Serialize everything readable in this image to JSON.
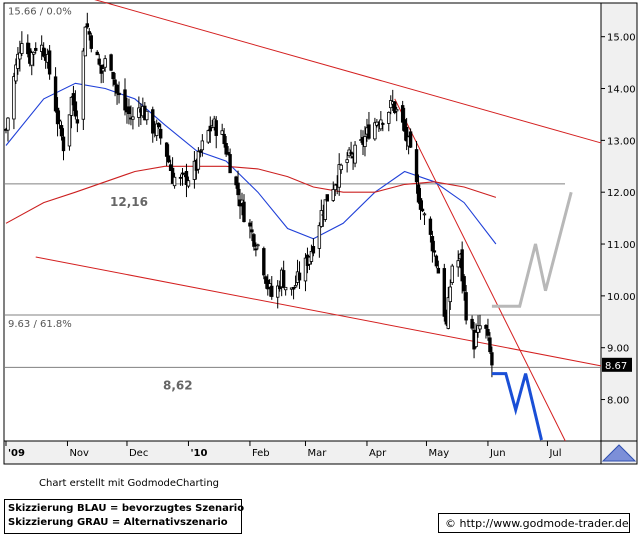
{
  "chart_data": {
    "type": "candlestick",
    "title": "",
    "x_axis": {
      "tick_labels": [
        "'09",
        "Nov",
        "Dec",
        "'10",
        "Feb",
        "Mar",
        "Apr",
        "May",
        "Jun",
        "Jul"
      ],
      "tick_dates": [
        "2009-10-01",
        "2009-11-01",
        "2009-12-01",
        "2010-01-01",
        "2010-02-01",
        "2010-03-01",
        "2010-04-01",
        "2010-05-01",
        "2010-06-01",
        "2010-07-01"
      ],
      "range": [
        "2009-09-30",
        "2010-07-28"
      ]
    },
    "y_axis": {
      "tick_labels": [
        "8.00",
        "9.00",
        "10.00",
        "11.00",
        "12.00",
        "13.00",
        "14.00",
        "15.00"
      ],
      "range": [
        7.2,
        15.65
      ],
      "side": "right"
    },
    "last_price_label": "8.67",
    "last_price": 8.67,
    "horizontal_lines": [
      {
        "label": "15.66 / 0.0%",
        "value": 15.66
      },
      {
        "label": "",
        "value": 12.16
      },
      {
        "label": "9.63 / 61.8%",
        "value": 9.63
      },
      {
        "label": "",
        "value": 8.62
      }
    ],
    "level_labels": [
      {
        "text": "12,16",
        "value": 12.16
      },
      {
        "text": "8,62",
        "value": 8.62
      }
    ],
    "trendlines": [
      {
        "name": "upper channel",
        "start": [
          "2009-10-01",
          16.2
        ],
        "end": [
          "2010-07-28",
          12.95
        ]
      },
      {
        "name": "lower channel",
        "start": [
          "2009-10-16",
          10.75
        ],
        "end": [
          "2010-07-28",
          8.65
        ]
      },
      {
        "name": "steep down trendline",
        "start": [
          "2010-04-15",
          13.8
        ],
        "end": [
          "2010-07-10",
          7.2
        ]
      }
    ],
    "close_series": [
      [
        "2009-10-01",
        13.2
      ],
      [
        "2009-10-05",
        14.2
      ],
      [
        "2009-10-09",
        15.0
      ],
      [
        "2009-10-13",
        14.6
      ],
      [
        "2009-10-17",
        14.9
      ],
      [
        "2009-10-21",
        14.7
      ],
      [
        "2009-10-25",
        13.9
      ],
      [
        "2009-10-27",
        13.4
      ],
      [
        "2009-10-30",
        12.9
      ],
      [
        "2009-11-03",
        13.8
      ],
      [
        "2009-11-07",
        13.4
      ],
      [
        "2009-11-10",
        15.3
      ],
      [
        "2009-11-14",
        14.8
      ],
      [
        "2009-11-18",
        14.3
      ],
      [
        "2009-11-22",
        14.7
      ],
      [
        "2009-11-26",
        13.9
      ],
      [
        "2009-11-30",
        13.6
      ],
      [
        "2009-12-04",
        13.4
      ],
      [
        "2009-12-08",
        13.7
      ],
      [
        "2009-12-12",
        13.3
      ],
      [
        "2009-12-16",
        13.2
      ],
      [
        "2009-12-20",
        12.9
      ],
      [
        "2009-12-24",
        12.3
      ],
      [
        "2009-12-28",
        12.2
      ],
      [
        "2010-01-01",
        12.3
      ],
      [
        "2010-01-05",
        12.5
      ],
      [
        "2010-01-09",
        13.0
      ],
      [
        "2010-01-13",
        13.3
      ],
      [
        "2010-01-17",
        13.2
      ],
      [
        "2010-01-21",
        12.7
      ],
      [
        "2010-01-25",
        12.1
      ],
      [
        "2010-01-29",
        11.6
      ],
      [
        "2010-02-02",
        11.2
      ],
      [
        "2010-02-06",
        10.9
      ],
      [
        "2010-02-10",
        10.2
      ],
      [
        "2010-02-13",
        9.9
      ],
      [
        "2010-02-17",
        10.4
      ],
      [
        "2010-02-21",
        10.0
      ],
      [
        "2010-02-25",
        10.3
      ],
      [
        "2010-03-01",
        10.6
      ],
      [
        "2010-03-05",
        11.0
      ],
      [
        "2010-03-09",
        11.6
      ],
      [
        "2010-03-13",
        12.0
      ],
      [
        "2010-03-17",
        12.3
      ],
      [
        "2010-03-21",
        12.6
      ],
      [
        "2010-03-25",
        12.7
      ],
      [
        "2010-03-29",
        12.9
      ],
      [
        "2010-04-02",
        13.2
      ],
      [
        "2010-04-06",
        13.4
      ],
      [
        "2010-04-10",
        13.5
      ],
      [
        "2010-04-14",
        13.7
      ],
      [
        "2010-04-18",
        13.4
      ],
      [
        "2010-04-22",
        12.9
      ],
      [
        "2010-04-26",
        12.1
      ],
      [
        "2010-04-30",
        11.5
      ],
      [
        "2010-05-04",
        11.0
      ],
      [
        "2010-05-08",
        10.3
      ],
      [
        "2010-05-11",
        9.4
      ],
      [
        "2010-05-14",
        10.6
      ],
      [
        "2010-05-18",
        10.7
      ],
      [
        "2010-05-21",
        9.7
      ],
      [
        "2010-05-25",
        9.1
      ],
      [
        "2010-05-28",
        9.4
      ],
      [
        "2010-05-31",
        9.3
      ],
      [
        "2010-06-03",
        8.67
      ]
    ],
    "series": [
      {
        "name": "",
        "color": "#2040d8",
        "values": [
          [
            "2009-10-01",
            12.9
          ],
          [
            "2009-10-20",
            13.8
          ],
          [
            "2009-11-05",
            14.1
          ],
          [
            "2009-11-20",
            14.0
          ],
          [
            "2009-12-05",
            13.8
          ],
          [
            "2009-12-20",
            13.3
          ],
          [
            "2010-01-05",
            12.8
          ],
          [
            "2010-01-20",
            12.6
          ],
          [
            "2010-02-05",
            12.0
          ],
          [
            "2010-02-20",
            11.3
          ],
          [
            "2010-03-05",
            11.1
          ],
          [
            "2010-03-20",
            11.4
          ],
          [
            "2010-04-05",
            12.0
          ],
          [
            "2010-04-20",
            12.4
          ],
          [
            "2010-05-05",
            12.2
          ],
          [
            "2010-05-20",
            11.8
          ],
          [
            "2010-06-05",
            11.0
          ]
        ]
      },
      {
        "name": "",
        "color": "#cc2020",
        "values": [
          [
            "2009-10-01",
            11.4
          ],
          [
            "2009-10-20",
            11.8
          ],
          [
            "2009-11-05",
            12.0
          ],
          [
            "2009-11-20",
            12.2
          ],
          [
            "2009-12-05",
            12.4
          ],
          [
            "2009-12-20",
            12.5
          ],
          [
            "2010-01-05",
            12.5
          ],
          [
            "2010-01-20",
            12.5
          ],
          [
            "2010-02-05",
            12.45
          ],
          [
            "2010-02-20",
            12.3
          ],
          [
            "2010-03-05",
            12.1
          ],
          [
            "2010-03-20",
            12.0
          ],
          [
            "2010-04-05",
            12.0
          ],
          [
            "2010-04-20",
            12.15
          ],
          [
            "2010-05-05",
            12.2
          ],
          [
            "2010-05-20",
            12.1
          ],
          [
            "2010-06-05",
            11.9
          ]
        ]
      }
    ],
    "scenarios": [
      {
        "name": "blau",
        "color": "#1a4fd6",
        "points": [
          [
            "2010-06-03",
            8.5
          ],
          [
            "2010-06-10",
            8.5
          ],
          [
            "2010-06-15",
            7.8
          ],
          [
            "2010-06-20",
            8.5
          ],
          [
            "2010-06-28",
            7.2
          ]
        ]
      },
      {
        "name": "grau",
        "color": "#b8b8b8",
        "points": [
          [
            "2010-06-03",
            9.8
          ],
          [
            "2010-06-17",
            9.8
          ],
          [
            "2010-06-25",
            11.0
          ],
          [
            "2010-06-30",
            10.1
          ],
          [
            "2010-07-13",
            12.0
          ]
        ]
      }
    ],
    "colors": {
      "axis_background": "#f0f0f0",
      "channel_lines": "#d42020",
      "level_lines": "#808080",
      "candles": "#000000"
    }
  },
  "footer": {
    "credit": "Chart erstellt mit GodmodeCharting",
    "legend_blue": "Skizzierung BLAU = bevorzugtes Szenario",
    "legend_gray": "Skizzierung GRAU = Alternativszenario",
    "url": "© http://www.godmode-trader.de"
  }
}
